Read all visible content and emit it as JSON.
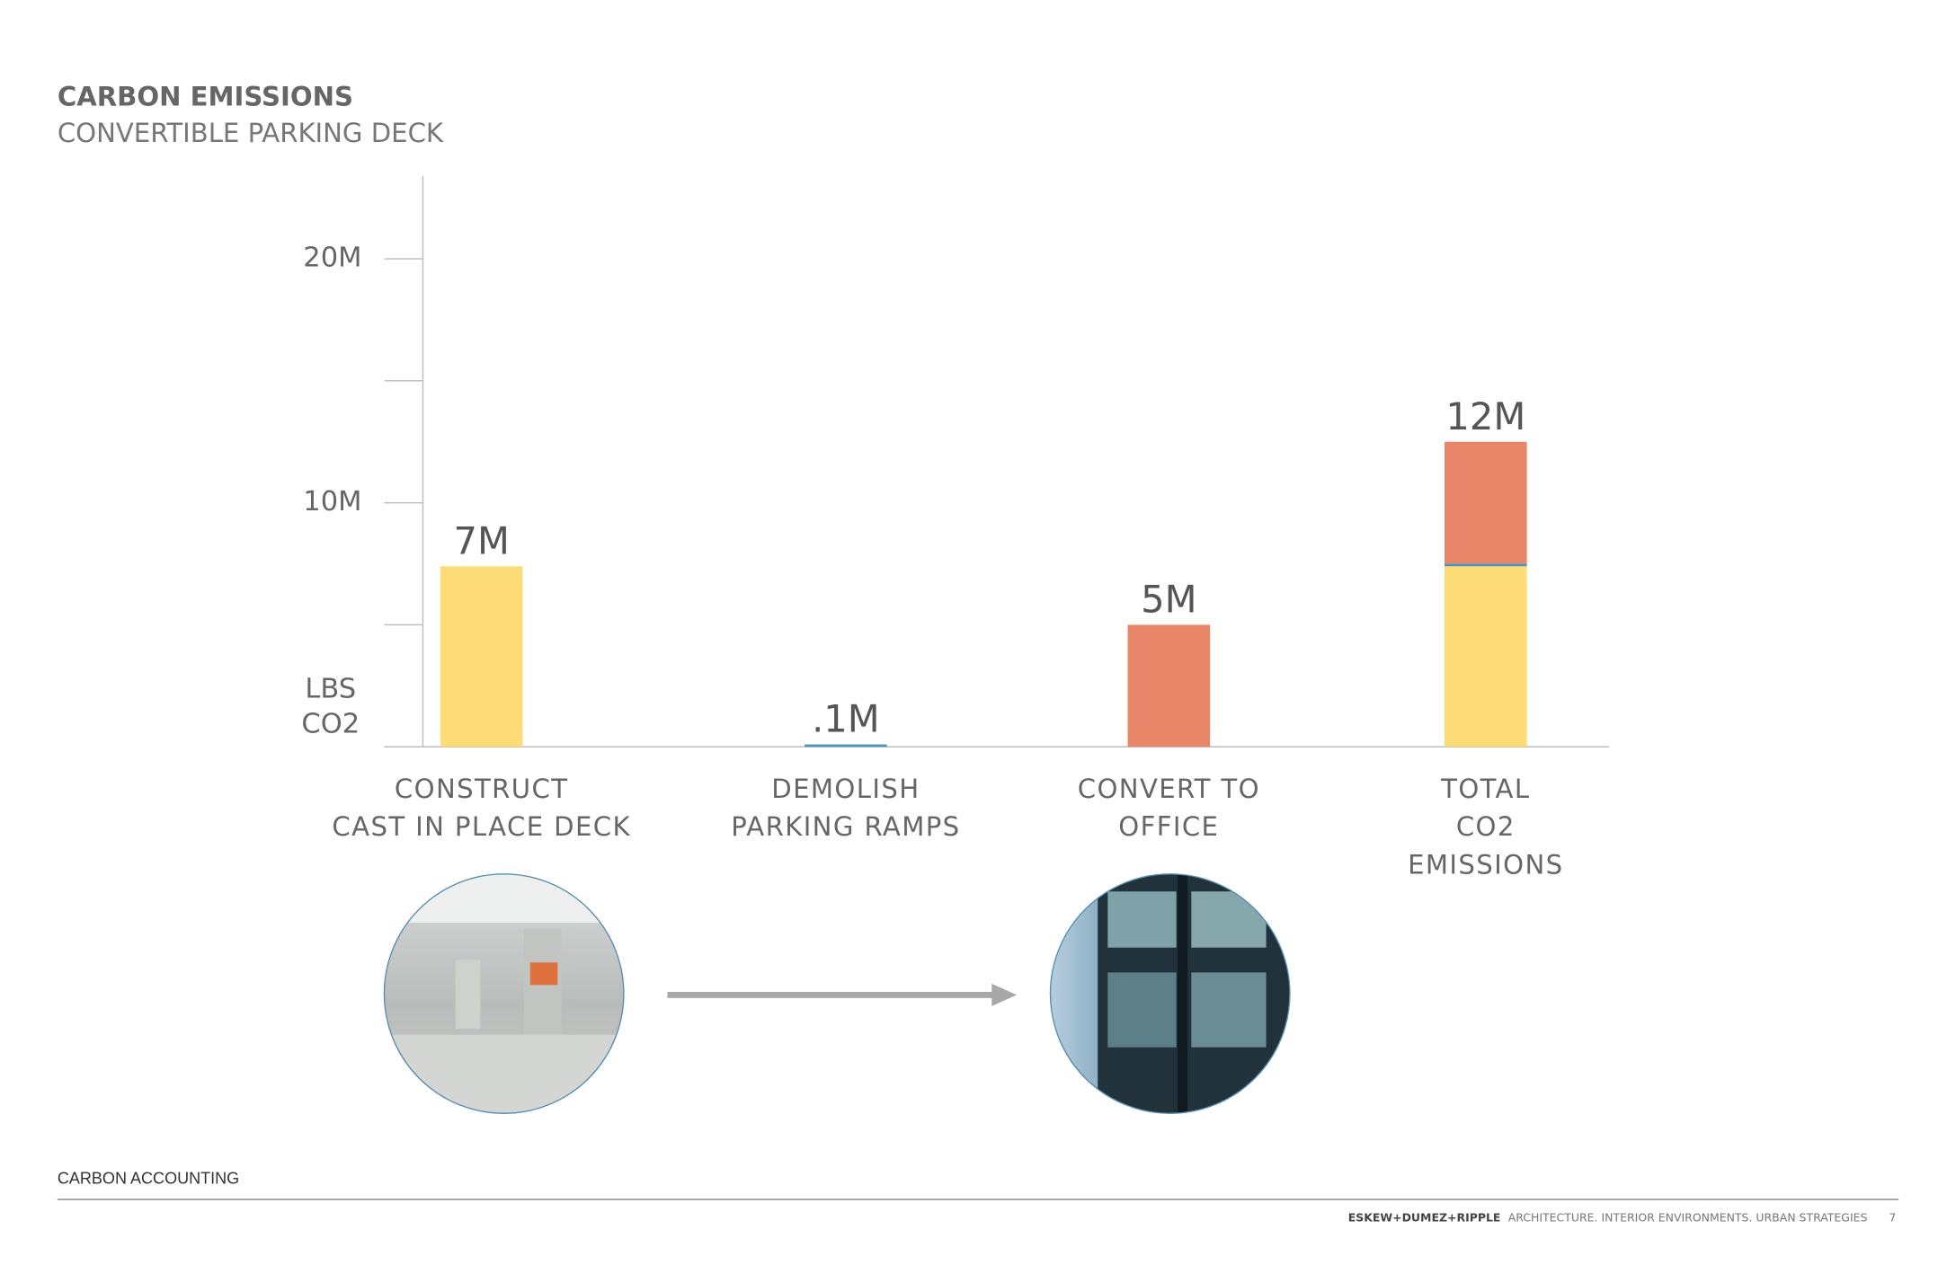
{
  "chart_data": {
    "type": "stacked_bar",
    "title": "CARBON EMISSIONS",
    "subtitle": "CONVERTIBLE PARKING DECK",
    "y_label": [
      "LBS",
      "CO2"
    ],
    "categories": [
      [
        "CONSTRUCT",
        "CAST IN PLACE DECK"
      ],
      [
        "DEMOLISH",
        "PARKING RAMPS"
      ],
      [
        "CONVERT TO",
        "OFFICE"
      ],
      [
        "TOTAL",
        "CO2",
        "EMISSIONS"
      ]
    ],
    "series": [
      {
        "color": "#fddc77",
        "values": [
          7400000,
          null,
          null,
          7400000
        ]
      },
      {
        "color": "#4a96be",
        "values": [
          null,
          100000,
          null,
          100000
        ]
      },
      {
        "color": "#e8866a",
        "values": [
          null,
          null,
          5000000,
          5000000
        ]
      }
    ],
    "total_labels": [
      "7M",
      ".1M",
      "5M",
      "12M"
    ],
    "ylim": [
      0,
      23400000
    ],
    "yticks": [
      {
        "value": 10000000,
        "label": "10M"
      },
      {
        "value": 20000000,
        "label": "20M"
      }
    ],
    "minor_yticks": [
      5000000,
      15000000
    ]
  },
  "footer": {
    "section": "CARBON ACCOUNTING",
    "firm": "ESKEW+DUMEZ+RIPPLE",
    "tagline": "ARCHITECTURE. INTERIOR ENVIRONMENTS. URBAN STRATEGIES",
    "page": 7
  }
}
